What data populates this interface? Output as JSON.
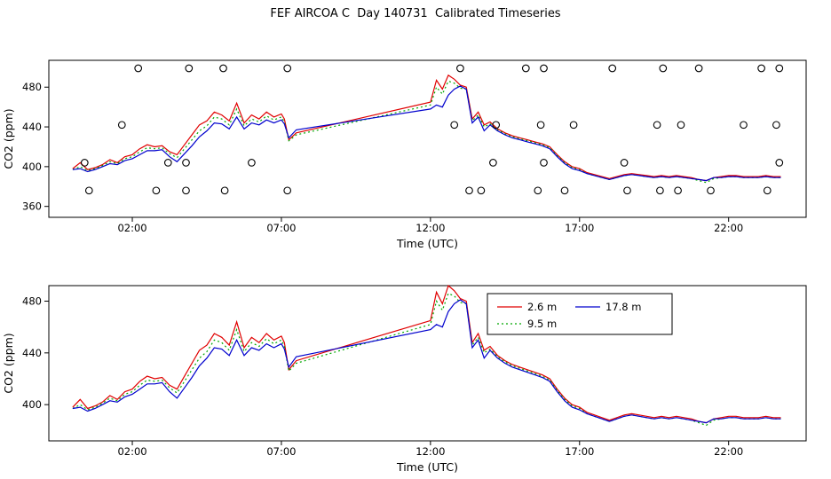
{
  "chart_data": {
    "type": "line",
    "title": "FEF AIRCOA C  Day 140731  Calibrated Timeseries",
    "xlabel": "Time (UTC)",
    "ylabel": "CO2 (ppm)",
    "xlim": [
      -0.8,
      24.6
    ],
    "xticks": [
      2,
      7,
      12,
      17,
      22
    ],
    "xtick_labels": [
      "02:00",
      "07:00",
      "12:00",
      "17:00",
      "22:00"
    ],
    "grid": false,
    "x_hours": [
      0.0,
      0.25,
      0.5,
      0.75,
      1.0,
      1.25,
      1.5,
      1.75,
      2.0,
      2.25,
      2.5,
      2.75,
      3.0,
      3.25,
      3.5,
      3.75,
      4.0,
      4.25,
      4.5,
      4.75,
      5.0,
      5.25,
      5.5,
      5.75,
      6.0,
      6.25,
      6.5,
      6.75,
      7.0,
      7.1,
      7.25,
      7.5,
      12.0,
      12.2,
      12.4,
      12.6,
      12.8,
      13.0,
      13.2,
      13.4,
      13.6,
      13.8,
      14.0,
      14.25,
      14.5,
      14.75,
      15.0,
      15.25,
      15.5,
      15.75,
      16.0,
      16.25,
      16.5,
      16.75,
      17.0,
      17.25,
      17.5,
      17.75,
      18.0,
      18.25,
      18.5,
      18.75,
      19.0,
      19.25,
      19.5,
      19.75,
      20.0,
      20.25,
      20.5,
      20.75,
      21.0,
      21.25,
      21.5,
      21.75,
      22.0,
      22.25,
      22.5,
      22.75,
      23.0,
      23.25,
      23.5,
      23.75
    ],
    "series": [
      {
        "name": "2.6 m",
        "color": "#e00000",
        "line_style": "solid",
        "values": [
          398,
          404,
          397,
          399,
          402,
          407,
          404,
          410,
          412,
          418,
          422,
          420,
          421,
          415,
          412,
          422,
          432,
          442,
          446,
          455,
          452,
          446,
          464,
          444,
          452,
          448,
          455,
          450,
          453,
          448,
          427,
          434,
          465,
          487,
          478,
          492,
          488,
          482,
          480,
          448,
          455,
          442,
          445,
          438,
          434,
          431,
          429,
          427,
          425,
          423,
          420,
          412,
          405,
          400,
          398,
          394,
          392,
          390,
          388,
          390,
          392,
          393,
          392,
          391,
          390,
          391,
          390,
          391,
          390,
          389,
          387,
          386,
          389,
          390,
          391,
          391,
          390,
          390,
          390,
          391,
          390,
          390
        ]
      },
      {
        "name": "9.5 m",
        "color": "#00a800",
        "line_style": "dotted",
        "values": [
          397,
          400,
          396,
          398,
          401,
          405,
          403,
          408,
          410,
          415,
          419,
          418,
          419,
          413,
          409,
          418,
          427,
          436,
          441,
          450,
          448,
          442,
          458,
          441,
          448,
          445,
          451,
          447,
          450,
          445,
          426,
          432,
          462,
          480,
          473,
          486,
          484,
          479,
          478,
          446,
          452,
          440,
          443,
          437,
          433,
          430,
          428,
          426,
          424,
          422,
          419,
          411,
          404,
          399,
          397,
          393,
          391,
          389,
          387,
          389,
          391,
          392,
          391,
          390,
          389,
          390,
          389,
          390,
          389,
          388,
          386,
          384,
          388,
          389,
          390,
          390,
          389,
          389,
          389,
          390,
          389,
          389
        ]
      },
      {
        "name": "17.8 m",
        "color": "#0000cd",
        "line_style": "solid",
        "values": [
          397,
          398,
          395,
          397,
          400,
          403,
          402,
          406,
          408,
          412,
          416,
          416,
          417,
          410,
          405,
          413,
          421,
          430,
          436,
          444,
          443,
          438,
          450,
          438,
          444,
          442,
          447,
          444,
          447,
          443,
          429,
          437,
          458,
          462,
          460,
          472,
          478,
          481,
          478,
          444,
          450,
          436,
          442,
          436,
          432,
          429,
          427,
          425,
          423,
          421,
          418,
          410,
          403,
          398,
          396,
          393,
          391,
          389,
          387,
          389,
          391,
          392,
          391,
          390,
          389,
          390,
          389,
          390,
          389,
          388,
          387,
          386,
          389,
          389,
          390,
          390,
          389,
          389,
          389,
          390,
          389,
          389
        ]
      }
    ],
    "calibration_markers": {
      "symbol": "open-circle",
      "points": [
        [
          2.2,
          499
        ],
        [
          3.9,
          499
        ],
        [
          5.05,
          499
        ],
        [
          7.2,
          499
        ],
        [
          13.0,
          499
        ],
        [
          15.2,
          499
        ],
        [
          15.8,
          499
        ],
        [
          18.1,
          499
        ],
        [
          19.8,
          499
        ],
        [
          21.0,
          499
        ],
        [
          23.1,
          499
        ],
        [
          23.7,
          499
        ],
        [
          1.65,
          442
        ],
        [
          12.8,
          442
        ],
        [
          14.2,
          442
        ],
        [
          15.7,
          442
        ],
        [
          16.8,
          442
        ],
        [
          19.6,
          442
        ],
        [
          20.4,
          442
        ],
        [
          22.5,
          442
        ],
        [
          23.6,
          442
        ],
        [
          0.4,
          404
        ],
        [
          3.2,
          404
        ],
        [
          3.8,
          404
        ],
        [
          6.0,
          404
        ],
        [
          14.1,
          404
        ],
        [
          15.8,
          404
        ],
        [
          18.5,
          404
        ],
        [
          23.7,
          404
        ],
        [
          0.55,
          376
        ],
        [
          2.8,
          376
        ],
        [
          3.8,
          376
        ],
        [
          5.1,
          376
        ],
        [
          7.2,
          376
        ],
        [
          13.3,
          376
        ],
        [
          13.7,
          376
        ],
        [
          15.6,
          376
        ],
        [
          16.5,
          376
        ],
        [
          18.6,
          376
        ],
        [
          19.7,
          376
        ],
        [
          20.3,
          376
        ],
        [
          21.4,
          376
        ],
        [
          23.3,
          376
        ]
      ]
    },
    "panels": [
      {
        "name": "top",
        "ylim": [
          349,
          507
        ],
        "yticks": [
          360,
          400,
          440,
          480
        ],
        "show_markers": true,
        "show_legend": false
      },
      {
        "name": "bottom",
        "ylim": [
          372,
          492
        ],
        "yticks": [
          400,
          440,
          480
        ],
        "show_markers": false,
        "show_legend": true
      }
    ],
    "legend": {
      "position": "top-right-inside",
      "entries": [
        "2.6 m",
        "9.5 m",
        "17.8 m"
      ]
    }
  }
}
